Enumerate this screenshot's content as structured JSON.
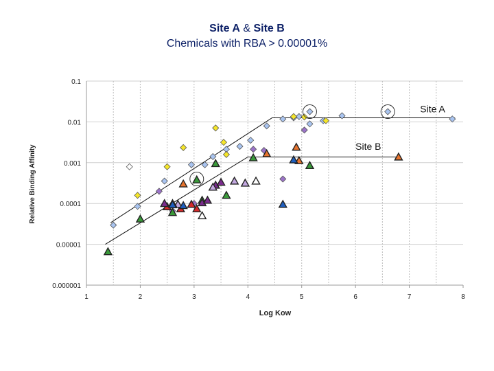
{
  "title": {
    "site_a": "Site A",
    "amp": " & ",
    "site_b": "Site B",
    "subtitle": "Chemicals with RBA > 0.00001%"
  },
  "chart_data": {
    "type": "scatter",
    "title": "Site A & Site B",
    "subtitle": "Chemicals with RBA > 0.00001%",
    "xlabel": "Log Kow",
    "ylabel": "Relative Binding Affinity",
    "xlim": [
      1,
      8
    ],
    "ylim_log10": [
      -6,
      -1
    ],
    "y_scale": "log",
    "x_ticks": [
      "1",
      "2",
      "3",
      "4",
      "5",
      "6",
      "7",
      "8"
    ],
    "y_ticks": [
      {
        "exp": -1,
        "label": "0.1"
      },
      {
        "exp": -2,
        "label": "0.01"
      },
      {
        "exp": -3,
        "label": "0.001"
      },
      {
        "exp": -4,
        "label": "0.0001"
      },
      {
        "exp": -5,
        "label": "0.00001"
      },
      {
        "exp": -6,
        "label": "0.000001"
      }
    ],
    "annotations": [
      {
        "text": "Site A",
        "x": 7.2,
        "logy": -1.68
      },
      {
        "text": "Site B",
        "x": 6.0,
        "logy": -2.6
      }
    ],
    "fit_lines": [
      {
        "name": "Site A",
        "points": [
          [
            1.45,
            -4.47
          ],
          [
            4.45,
            -1.9
          ],
          [
            7.85,
            -1.9
          ]
        ]
      },
      {
        "name": "Site B",
        "points": [
          [
            1.35,
            -5.0
          ],
          [
            4.0,
            -2.86
          ],
          [
            6.8,
            -2.86
          ]
        ]
      }
    ],
    "circled_points": [
      {
        "x": 5.15,
        "logy": -1.75
      },
      {
        "x": 6.6,
        "logy": -1.75
      },
      {
        "x": 3.05,
        "logy": -3.4
      }
    ],
    "series": [
      {
        "name": "Site A - light blue",
        "marker": "diamond",
        "color": "#a9c4f0",
        "points": [
          [
            1.5,
            -4.53
          ],
          [
            1.95,
            -4.07
          ],
          [
            2.45,
            -3.45
          ],
          [
            2.95,
            -3.05
          ],
          [
            3.2,
            -3.05
          ],
          [
            3.35,
            -2.85
          ],
          [
            3.6,
            -2.67
          ],
          [
            3.85,
            -2.6
          ],
          [
            4.05,
            -2.45
          ],
          [
            4.35,
            -2.1
          ],
          [
            4.65,
            -1.93
          ],
          [
            4.85,
            -1.9
          ],
          [
            5.15,
            -1.75
          ],
          [
            5.15,
            -2.05
          ],
          [
            5.4,
            -1.97
          ],
          [
            5.75,
            -1.85
          ],
          [
            6.6,
            -1.75
          ],
          [
            7.8,
            -1.93
          ],
          [
            4.95,
            -1.87
          ]
        ]
      },
      {
        "name": "Site A - white",
        "marker": "diamond",
        "color": "#ffffff",
        "points": [
          [
            1.8,
            -3.1
          ]
        ]
      },
      {
        "name": "Site A - yellow",
        "marker": "diamond",
        "color": "#f5e62a",
        "points": [
          [
            1.95,
            -3.8
          ],
          [
            2.5,
            -3.1
          ],
          [
            2.8,
            -2.63
          ],
          [
            3.4,
            -2.15
          ],
          [
            3.55,
            -2.5
          ],
          [
            3.6,
            -2.8
          ],
          [
            4.85,
            -1.87
          ],
          [
            5.05,
            -1.88
          ],
          [
            5.45,
            -1.97
          ]
        ]
      },
      {
        "name": "Site A - purple",
        "marker": "diamond",
        "color": "#9b73c8",
        "points": [
          [
            2.35,
            -3.7
          ],
          [
            2.6,
            -4.18
          ],
          [
            3.0,
            -4.0
          ],
          [
            4.1,
            -2.67
          ],
          [
            4.65,
            -3.4
          ],
          [
            5.05,
            -2.2
          ],
          [
            4.3,
            -2.7
          ]
        ]
      },
      {
        "name": "Site B - green",
        "marker": "triangle",
        "color": "#3a9a3a",
        "points": [
          [
            1.4,
            -5.18
          ],
          [
            2.0,
            -4.38
          ],
          [
            2.6,
            -4.22
          ],
          [
            3.05,
            -3.42
          ],
          [
            3.15,
            -3.92
          ],
          [
            3.4,
            -3.02
          ],
          [
            3.6,
            -3.8
          ],
          [
            4.1,
            -2.88
          ],
          [
            5.15,
            -3.07
          ]
        ]
      },
      {
        "name": "Site B - orange",
        "marker": "triangle",
        "color": "#e8742e",
        "points": [
          [
            2.8,
            -3.52
          ],
          [
            4.35,
            -2.78
          ],
          [
            4.9,
            -2.62
          ],
          [
            4.95,
            -2.95
          ],
          [
            6.8,
            -2.86
          ]
        ]
      },
      {
        "name": "Site B - red",
        "marker": "triangle",
        "color": "#d62c2c",
        "points": [
          [
            2.5,
            -4.08
          ],
          [
            2.75,
            -4.13
          ],
          [
            2.95,
            -4.02
          ],
          [
            3.05,
            -4.13
          ]
        ]
      },
      {
        "name": "Site B - purple",
        "marker": "triangle",
        "color": "#7b2c8e",
        "points": [
          [
            2.45,
            -4.0
          ],
          [
            3.15,
            -3.98
          ],
          [
            3.25,
            -3.92
          ],
          [
            3.4,
            -3.55
          ],
          [
            3.5,
            -3.48
          ]
        ]
      },
      {
        "name": "Site B - lavender",
        "marker": "triangle",
        "color": "#c3a8e0",
        "points": [
          [
            3.35,
            -3.6
          ],
          [
            3.75,
            -3.45
          ],
          [
            3.95,
            -3.5
          ],
          [
            2.7,
            -4.02
          ]
        ]
      },
      {
        "name": "Site B - white",
        "marker": "triangle",
        "color": "#ffffff",
        "points": [
          [
            2.6,
            -4.0
          ],
          [
            3.15,
            -4.3
          ],
          [
            4.15,
            -3.45
          ]
        ]
      },
      {
        "name": "Site B - blue",
        "marker": "triangle",
        "color": "#1f5fbf",
        "points": [
          [
            4.85,
            -2.93
          ],
          [
            4.65,
            -4.02
          ],
          [
            2.6,
            -4.03
          ],
          [
            2.8,
            -4.05
          ]
        ]
      }
    ]
  }
}
